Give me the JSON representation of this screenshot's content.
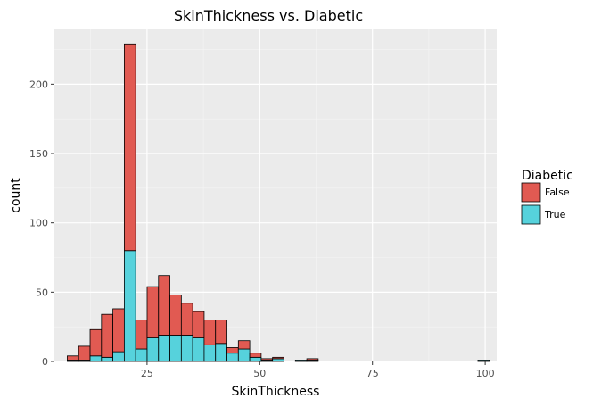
{
  "chart_data": {
    "type": "bar",
    "subtype": "stacked-histogram",
    "title": "SkinThickness vs. Diabetic",
    "xlabel": "SkinThickness",
    "ylabel": "count",
    "xlim": [
      4.45,
      102.55
    ],
    "ylim": [
      0,
      239.5
    ],
    "xticks": [
      25,
      50,
      75,
      100
    ],
    "xtick_labels": [
      "25",
      "50",
      "75",
      "100"
    ],
    "yticks": [
      0,
      50,
      100,
      150,
      200
    ],
    "ytick_labels": [
      "0",
      "50",
      "100",
      "150",
      "200"
    ],
    "grid": true,
    "legend": {
      "title": "Diabetic",
      "position": "right"
    },
    "bin_width": 2.53,
    "bin_centers": [
      8.57,
      11.1,
      13.63,
      16.16,
      18.69,
      21.22,
      23.75,
      26.28,
      28.81,
      31.34,
      33.87,
      36.4,
      38.93,
      41.46,
      43.99,
      46.52,
      49.05,
      51.58,
      54.11,
      56.64,
      59.17,
      61.7,
      64.23,
      66.76,
      69.29,
      71.82,
      74.35,
      76.88,
      79.41,
      81.94,
      84.47,
      87.0,
      89.53,
      92.06,
      94.59,
      97.12,
      99.65
    ],
    "series": [
      {
        "name": "False",
        "color": "#e15a52",
        "values": [
          3,
          10,
          19,
          31,
          31,
          149,
          21,
          37,
          43,
          29,
          23,
          19,
          18,
          17,
          4,
          6,
          3,
          1,
          1,
          0,
          0,
          1,
          0,
          0,
          0,
          0,
          0,
          0,
          0,
          0,
          0,
          0,
          0,
          0,
          0,
          0,
          0
        ]
      },
      {
        "name": "True",
        "color": "#56d2dc",
        "values": [
          1,
          1,
          4,
          3,
          7,
          80,
          9,
          17,
          19,
          19,
          19,
          17,
          12,
          13,
          6,
          9,
          3,
          1,
          2,
          0,
          1,
          1,
          0,
          0,
          0,
          0,
          0,
          0,
          0,
          0,
          0,
          0,
          0,
          0,
          0,
          0,
          1
        ]
      }
    ]
  }
}
